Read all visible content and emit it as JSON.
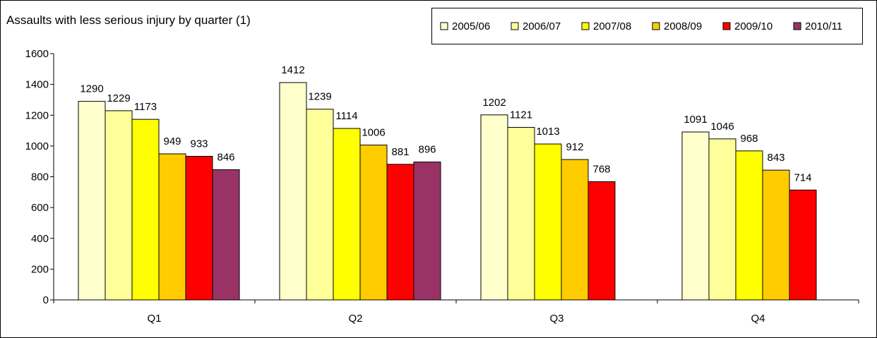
{
  "chart_data": {
    "type": "bar",
    "title": "Assaults with less serious injury by quarter (1)",
    "xlabel": "",
    "ylabel": "",
    "categories": [
      "Q1",
      "Q2",
      "Q3",
      "Q4"
    ],
    "ylim": [
      0,
      1600
    ],
    "yticks": [
      0,
      200,
      400,
      600,
      800,
      1000,
      1200,
      1400,
      1600
    ],
    "grid": false,
    "legend_position": "top-right",
    "series": [
      {
        "name": "2005/06",
        "color": "#FFFFCC",
        "values": [
          1290,
          1412,
          1202,
          1091
        ]
      },
      {
        "name": "2006/07",
        "color": "#FFFF99",
        "values": [
          1229,
          1239,
          1121,
          1046
        ]
      },
      {
        "name": "2007/08",
        "color": "#FFFF00",
        "values": [
          1173,
          1114,
          1013,
          968
        ]
      },
      {
        "name": "2008/09",
        "color": "#FFCC00",
        "values": [
          949,
          1006,
          912,
          843
        ]
      },
      {
        "name": "2009/10",
        "color": "#FF0000",
        "values": [
          933,
          881,
          768,
          714
        ]
      },
      {
        "name": "2010/11",
        "color": "#993366",
        "values": [
          846,
          896,
          null,
          null
        ]
      }
    ]
  }
}
